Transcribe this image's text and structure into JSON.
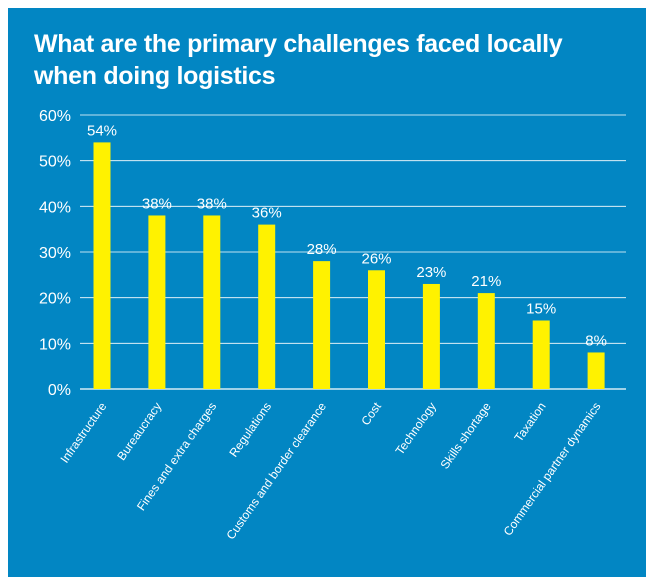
{
  "title": "What are the primary challenges faced locally when doing logistics",
  "colors": {
    "background": "#0286c3",
    "bar": "#fff200",
    "text": "#ffffff",
    "grid": "#ffffff"
  },
  "chart_data": {
    "type": "bar",
    "categories": [
      "Infrastructure",
      "Bureaucracy",
      "Fines and extra charges",
      "Regulations",
      "Customs and border clearance",
      "Cost",
      "Technology",
      "Skills shortage",
      "Taxation",
      "Commercial partner dynamics"
    ],
    "values": [
      54,
      38,
      38,
      36,
      28,
      26,
      23,
      21,
      15,
      8
    ],
    "data_labels": [
      "54%",
      "38%",
      "38%",
      "36%",
      "28%",
      "26%",
      "23%",
      "21%",
      "15%",
      "8%"
    ],
    "yticks": [
      0,
      10,
      20,
      30,
      40,
      50,
      60
    ],
    "ytick_labels": [
      "0%",
      "10%",
      "20%",
      "30%",
      "40%",
      "50%",
      "60%"
    ],
    "ylim": [
      0,
      60
    ],
    "grid": true
  }
}
